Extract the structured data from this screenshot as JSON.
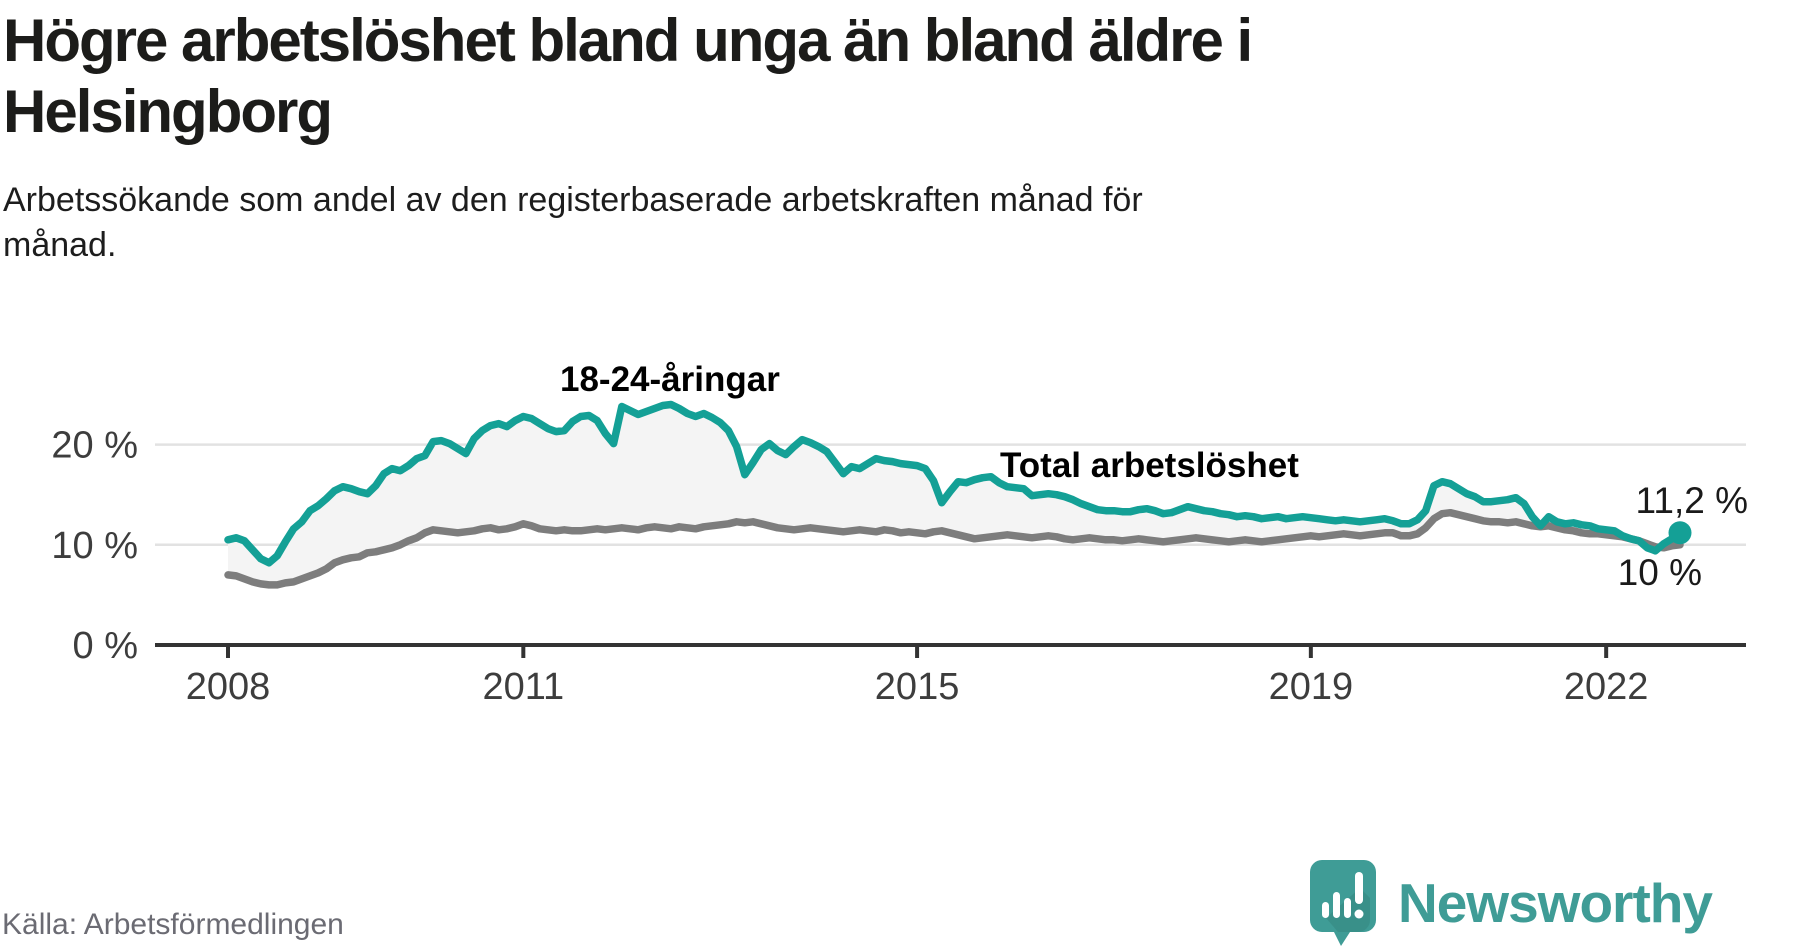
{
  "header": {
    "title": "Högre arbetslöshet bland unga än bland äldre i\nHelsingborg",
    "subtitle": "Arbetssökande som andel av den registerbaserade arbetskraften månad för\nmånad."
  },
  "footer": {
    "source": "Källa: Arbetsförmedlingen",
    "brand": "Newsworthy",
    "logo_icon": "bar-chart-speech-bubble-icon"
  },
  "colors": {
    "youth_line": "#14a096",
    "total_line": "#7d7d7d",
    "area_fill": "#f4f4f4",
    "gridline": "#e2e2e2",
    "axis": "#333333",
    "axis_text": "#3d3d3d",
    "end_label_text": "#1a1a1a",
    "brand_teal": "#3f9c96",
    "title_text": "#1c1c1a",
    "source_text": "#6b6b73"
  },
  "chart_data": {
    "type": "line",
    "title": "Högre arbetslöshet bland unga än bland äldre i Helsingborg",
    "subtitle": "Arbetssökande som andel av den registerbaserade arbetskraften månad för månad.",
    "unit": "%",
    "frequency": "monthly",
    "x_start": "2008-01",
    "x_end": "2022-10",
    "x_tick_labels": [
      "2008",
      "2011",
      "2015",
      "2019",
      "2022"
    ],
    "y_gridlines": [
      0,
      10,
      20
    ],
    "y_tick_labels": [
      "0 %",
      "10 %",
      "20 %"
    ],
    "ylim": [
      0,
      30
    ],
    "grid": true,
    "legend_position": "inline-labels",
    "series": [
      {
        "name": "18-24-åringar",
        "color": "#14a096",
        "end_label": "11,2 %",
        "end_value": 11.2,
        "values": [
          10.5,
          10.7,
          10.4,
          9.5,
          8.6,
          8.2,
          8.9,
          10.3,
          11.6,
          12.3,
          13.4,
          13.9,
          14.6,
          15.4,
          15.8,
          15.6,
          15.3,
          15.1,
          15.9,
          17.1,
          17.6,
          17.4,
          17.9,
          18.6,
          18.9,
          20.3,
          20.4,
          20.1,
          19.6,
          19.1,
          20.6,
          21.4,
          21.9,
          22.1,
          21.8,
          22.4,
          22.8,
          22.6,
          22.1,
          21.6,
          21.3,
          21.4,
          22.3,
          22.8,
          22.9,
          22.4,
          21.1,
          20.1,
          23.8,
          23.4,
          23.0,
          23.3,
          23.6,
          23.9,
          24.0,
          23.6,
          23.1,
          22.8,
          23.1,
          22.7,
          22.2,
          21.4,
          19.8,
          17.0,
          18.2,
          19.5,
          20.1,
          19.4,
          19.0,
          19.8,
          20.5,
          20.2,
          19.8,
          19.3,
          18.2,
          17.1,
          17.8,
          17.6,
          18.1,
          18.6,
          18.4,
          18.3,
          18.1,
          18.0,
          17.9,
          17.6,
          16.4,
          14.2,
          15.3,
          16.3,
          16.2,
          16.5,
          16.7,
          16.8,
          16.2,
          15.8,
          15.7,
          15.6,
          14.9,
          15.0,
          15.1,
          15.0,
          14.8,
          14.5,
          14.1,
          13.8,
          13.5,
          13.4,
          13.4,
          13.3,
          13.3,
          13.5,
          13.6,
          13.4,
          13.1,
          13.2,
          13.5,
          13.8,
          13.6,
          13.4,
          13.3,
          13.1,
          13.0,
          12.8,
          12.9,
          12.8,
          12.6,
          12.7,
          12.8,
          12.6,
          12.7,
          12.8,
          12.7,
          12.6,
          12.5,
          12.4,
          12.5,
          12.4,
          12.3,
          12.4,
          12.5,
          12.6,
          12.4,
          12.1,
          12.1,
          12.5,
          13.4,
          15.9,
          16.3,
          16.1,
          15.6,
          15.1,
          14.8,
          14.3,
          14.3,
          14.4,
          14.5,
          14.7,
          14.1,
          12.8,
          11.9,
          12.8,
          12.3,
          12.1,
          12.2,
          12.0,
          11.9,
          11.6,
          11.5,
          11.4,
          10.9,
          10.6,
          10.4,
          9.7,
          9.4,
          10.1,
          10.6,
          11.2
        ]
      },
      {
        "name": "Total arbetslöshet",
        "color": "#7d7d7d",
        "end_label": "10 %",
        "end_value": 10.0,
        "values": [
          7.0,
          6.9,
          6.6,
          6.3,
          6.1,
          6.0,
          6.0,
          6.2,
          6.3,
          6.6,
          6.9,
          7.2,
          7.6,
          8.2,
          8.5,
          8.7,
          8.8,
          9.2,
          9.3,
          9.5,
          9.7,
          10.0,
          10.4,
          10.7,
          11.2,
          11.5,
          11.4,
          11.3,
          11.2,
          11.3,
          11.4,
          11.6,
          11.7,
          11.5,
          11.6,
          11.8,
          12.1,
          11.9,
          11.6,
          11.5,
          11.4,
          11.5,
          11.4,
          11.4,
          11.5,
          11.6,
          11.5,
          11.6,
          11.7,
          11.6,
          11.5,
          11.7,
          11.8,
          11.7,
          11.6,
          11.8,
          11.7,
          11.6,
          11.8,
          11.9,
          12.0,
          12.1,
          12.3,
          12.2,
          12.3,
          12.1,
          11.9,
          11.7,
          11.6,
          11.5,
          11.6,
          11.7,
          11.6,
          11.5,
          11.4,
          11.3,
          11.4,
          11.5,
          11.4,
          11.3,
          11.5,
          11.4,
          11.2,
          11.3,
          11.2,
          11.1,
          11.3,
          11.4,
          11.2,
          11.0,
          10.8,
          10.6,
          10.7,
          10.8,
          10.9,
          11.0,
          10.9,
          10.8,
          10.7,
          10.8,
          10.9,
          10.8,
          10.6,
          10.5,
          10.6,
          10.7,
          10.6,
          10.5,
          10.5,
          10.4,
          10.5,
          10.6,
          10.5,
          10.4,
          10.3,
          10.4,
          10.5,
          10.6,
          10.7,
          10.6,
          10.5,
          10.4,
          10.3,
          10.4,
          10.5,
          10.4,
          10.3,
          10.4,
          10.5,
          10.6,
          10.7,
          10.8,
          10.9,
          10.8,
          10.9,
          11.0,
          11.1,
          11.0,
          10.9,
          11.0,
          11.1,
          11.2,
          11.2,
          10.9,
          10.9,
          11.1,
          11.7,
          12.6,
          13.1,
          13.2,
          13.0,
          12.8,
          12.6,
          12.4,
          12.3,
          12.3,
          12.2,
          12.3,
          12.1,
          11.9,
          11.8,
          11.9,
          11.7,
          11.5,
          11.4,
          11.2,
          11.1,
          11.1,
          11.0,
          10.9,
          10.8,
          10.6,
          10.4,
          10.1,
          9.8,
          9.7,
          9.9,
          10.0
        ]
      }
    ]
  }
}
